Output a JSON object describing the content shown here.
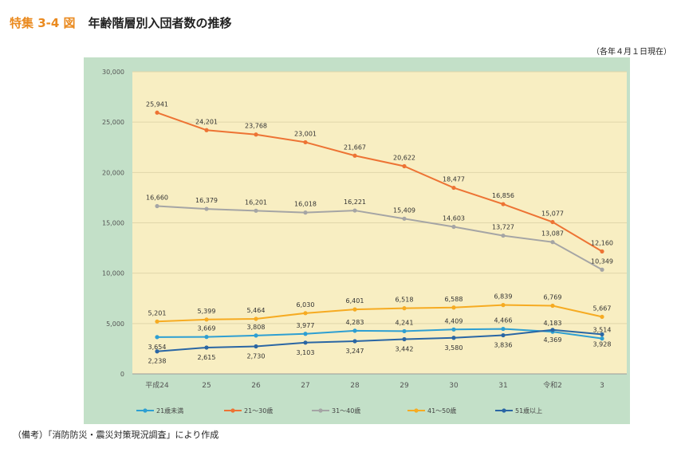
{
  "figure": {
    "number": "特集 3-4 図",
    "title": "年齢階層別入団者数の推移",
    "note": "（各年４月１日現在）",
    "source": "（備考）「消防防災・震災対策現況調査」により作成"
  },
  "chart_data": {
    "type": "line",
    "categories": [
      "平成24",
      "25",
      "26",
      "27",
      "28",
      "29",
      "30",
      "31",
      "令和2",
      "3"
    ],
    "ylim": [
      0,
      30000
    ],
    "yticks": [
      "0",
      "5,000",
      "10,000",
      "15,000",
      "20,000",
      "25,000",
      "30,000"
    ],
    "legend_position": "bottom",
    "grid": "horizontal",
    "colors": {
      "outer_bg": "#c3e0c8",
      "plot_bg": "#f8eec2",
      "grid": "#e0d6aa"
    },
    "series": [
      {
        "name": "21歳未満",
        "color": "#2e9fd2",
        "values": [
          3654,
          3669,
          3808,
          3977,
          4283,
          4241,
          4409,
          4466,
          4183,
          3514
        ],
        "labels": [
          "3,654",
          "3,669",
          "3,808",
          "3,977",
          "4,283",
          "4,241",
          "4,409",
          "4,466",
          "4,183",
          "3,514"
        ]
      },
      {
        "name": "21～30歳",
        "color": "#ed7334",
        "values": [
          25941,
          24201,
          23768,
          23001,
          21667,
          20622,
          18477,
          16856,
          15077,
          12160
        ],
        "labels": [
          "25,941",
          "24,201",
          "23,768",
          "23,001",
          "21,667",
          "20,622",
          "18,477",
          "16,856",
          "15,077",
          "12,160"
        ]
      },
      {
        "name": "31～40歳",
        "color": "#a5a5a5",
        "values": [
          16660,
          16379,
          16201,
          16018,
          16221,
          15409,
          14603,
          13727,
          13087,
          10349
        ],
        "labels": [
          "16,660",
          "16,379",
          "16,201",
          "16,018",
          "16,221",
          "15,409",
          "14,603",
          "13,727",
          "13,087",
          "10,349"
        ]
      },
      {
        "name": "41～50歳",
        "color": "#f6ab22",
        "values": [
          5201,
          5399,
          5464,
          6030,
          6401,
          6518,
          6588,
          6839,
          6769,
          5667
        ],
        "labels": [
          "5,201",
          "5,399",
          "5,464",
          "6,030",
          "6,401",
          "6,518",
          "6,588",
          "6,839",
          "6,769",
          "5,667"
        ]
      },
      {
        "name": "51歳以上",
        "color": "#2a66a4",
        "values": [
          2238,
          2615,
          2730,
          3103,
          3247,
          3442,
          3580,
          3836,
          4369,
          3928
        ],
        "labels": [
          "2,238",
          "2,615",
          "2,730",
          "3,103",
          "3,247",
          "3,442",
          "3,580",
          "3,836",
          "4,369",
          "3,928"
        ]
      }
    ]
  }
}
